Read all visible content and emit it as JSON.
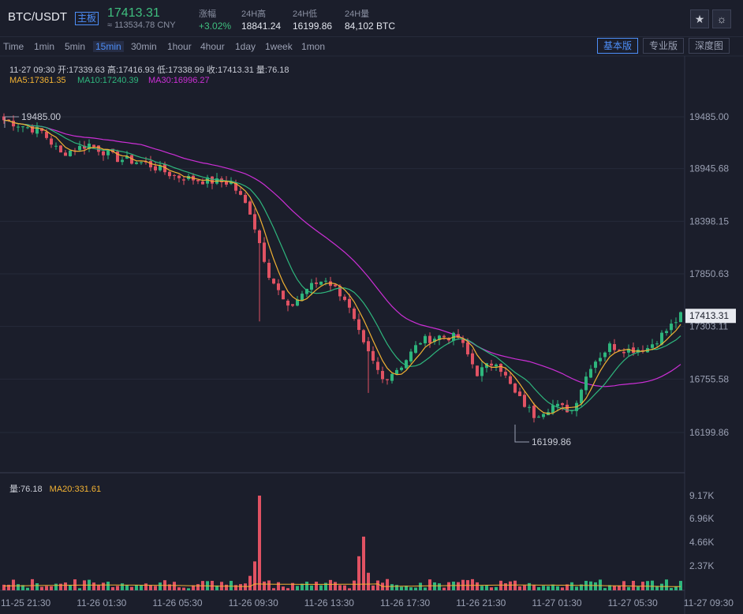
{
  "header": {
    "pair": "BTC/USDT",
    "board_tag": "主板",
    "last_price": "17413.31",
    "cny_price": "≈ 113534.78 CNY",
    "stats": [
      {
        "label": "涨幅",
        "value": "+3.02%",
        "color": "#3fbf7f"
      },
      {
        "label": "24H高",
        "value": "18841.24",
        "color": "#e3e6ee"
      },
      {
        "label": "24H低",
        "value": "16199.86",
        "color": "#e3e6ee"
      },
      {
        "label": "24H量",
        "value": "84,102 BTC",
        "color": "#e3e6ee"
      }
    ],
    "icons": [
      "star-icon",
      "sun-icon"
    ]
  },
  "toolbar": {
    "timeframes": [
      "Time",
      "1min",
      "5min",
      "15min",
      "30min",
      "1hour",
      "4hour",
      "1day",
      "1week",
      "1mon"
    ],
    "active_timeframe": "15min",
    "views": [
      "基本版",
      "专业版",
      "深度图"
    ],
    "active_view": "基本版"
  },
  "info": {
    "ohlc_line": "11-27 09:30  开:17339.63  高:17416.93  低:17338.99  收:17413.31  量:76.18",
    "ma5": "MA5:17361.35",
    "ma10": "MA10:17240.39",
    "ma30": "MA30:16996.27",
    "vol": "量:76.18",
    "ma20vol": "MA20:331.61"
  },
  "colors": {
    "up": "#2eb67d",
    "down": "#e05263",
    "ma5": "#f2b233",
    "ma10": "#2eb67d",
    "ma30": "#cc2fd6",
    "accent": "#4d8ef7"
  },
  "chart_data": {
    "type": "candlestick",
    "price_axis_ticks": [
      "19485.00",
      "18945.68",
      "18398.15",
      "17850.63",
      "17303.11",
      "16755.58",
      "16199.86"
    ],
    "price_axis_values": [
      19485.0,
      18945.68,
      18398.15,
      17850.63,
      17303.11,
      16755.58,
      16199.86
    ],
    "price_range": [
      15700,
      19950
    ],
    "current_price_label": "17413.31",
    "annotations": [
      {
        "text": "19485.00",
        "value": 19485.0,
        "at": "start"
      },
      {
        "text": "16199.86",
        "value": 16199.86,
        "at": "low"
      }
    ],
    "volume_axis_ticks": [
      "9.17K",
      "6.96K",
      "4.66K",
      "2.37K"
    ],
    "volume_axis_values": [
      9170,
      6960,
      4660,
      2370
    ],
    "volume_range": [
      0,
      10000
    ],
    "time_axis_ticks": [
      "11-25 21:30",
      "11-26 01:30",
      "11-26 05:30",
      "11-26 09:30",
      "11-26 13:30",
      "11-26 17:30",
      "11-26 21:30",
      "11-27 01:30",
      "11-27 05:30",
      "11-27 09:30"
    ],
    "candle_count": 144,
    "close_keyframes": [
      [
        0,
        19450
      ],
      [
        8,
        19330
      ],
      [
        12,
        19100
      ],
      [
        18,
        19200
      ],
      [
        24,
        19050
      ],
      [
        30,
        19000
      ],
      [
        36,
        18870
      ],
      [
        42,
        18820
      ],
      [
        48,
        18800
      ],
      [
        52,
        18500
      ],
      [
        56,
        17850
      ],
      [
        60,
        17480
      ],
      [
        64,
        17700
      ],
      [
        68,
        17800
      ],
      [
        72,
        17600
      ],
      [
        76,
        17100
      ],
      [
        80,
        16750
      ],
      [
        84,
        16900
      ],
      [
        88,
        17150
      ],
      [
        92,
        17200
      ],
      [
        96,
        17190
      ],
      [
        100,
        16820
      ],
      [
        104,
        16950
      ],
      [
        108,
        16600
      ],
      [
        112,
        16380
      ],
      [
        116,
        16480
      ],
      [
        120,
        16430
      ],
      [
        124,
        16900
      ],
      [
        128,
        17100
      ],
      [
        132,
        17060
      ],
      [
        136,
        17080
      ],
      [
        140,
        17260
      ],
      [
        143,
        17413
      ]
    ],
    "volume_spikes": [
      [
        54,
        9170
      ],
      [
        53,
        2800
      ],
      [
        76,
        5200
      ],
      [
        75,
        3300
      ],
      [
        77,
        1700
      ],
      [
        52,
        1400
      ]
    ]
  }
}
